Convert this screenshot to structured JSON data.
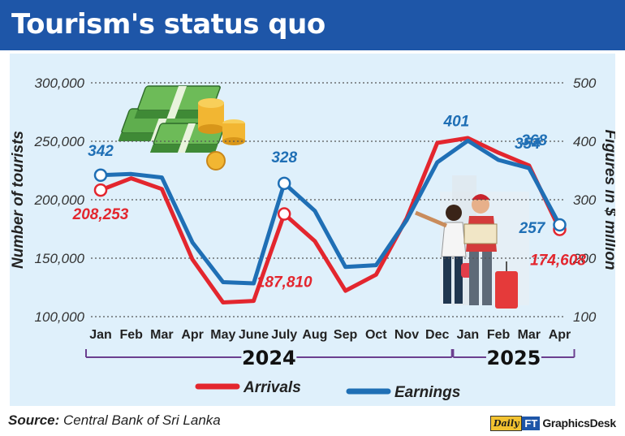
{
  "header": {
    "title": "Tourism's status quo"
  },
  "chart_data": {
    "type": "line",
    "categories": [
      "Jan",
      "Feb",
      "Mar",
      "Apr",
      "May",
      "June",
      "July",
      "Aug",
      "Sep",
      "Oct",
      "Nov",
      "Dec",
      "Jan",
      "Feb",
      "Mar",
      "Apr"
    ],
    "year_groups": [
      {
        "label": "2024",
        "start": 0,
        "end": 11
      },
      {
        "label": "2025",
        "start": 12,
        "end": 15
      }
    ],
    "y_left": {
      "label": "Number of tourists",
      "ticks": [
        "100,000",
        "150,000",
        "200,000",
        "250,000",
        "300,000"
      ],
      "range": [
        100000,
        300000
      ]
    },
    "y_right": {
      "label": "Figures in $ million",
      "ticks": [
        "100",
        "200",
        "300",
        "400",
        "500"
      ],
      "range": [
        100,
        500
      ]
    },
    "series": [
      {
        "name": "Arrivals",
        "axis": "left",
        "color": "#e3262e",
        "values": [
          208253,
          218350,
          209181,
          148867,
          112128,
          113470,
          187810,
          164609,
          122140,
          135907,
          184158,
          248592,
          252761,
          240217,
          229298,
          174608
        ]
      },
      {
        "name": "Earnings",
        "axis": "right",
        "color": "#1f6fb5",
        "values": [
          342,
          344,
          338,
          227,
          159,
          157,
          328,
          281,
          185,
          188,
          265,
          364,
          401,
          368,
          354,
          257
        ]
      }
    ],
    "annotations": [
      {
        "series": 0,
        "index": 0,
        "text": "208,253"
      },
      {
        "series": 0,
        "index": 6,
        "text": "187,810"
      },
      {
        "series": 0,
        "index": 15,
        "text": "174,608"
      },
      {
        "series": 1,
        "index": 0,
        "text": "342"
      },
      {
        "series": 1,
        "index": 6,
        "text": "328"
      },
      {
        "series": 1,
        "index": 12,
        "text": "401"
      },
      {
        "series": 1,
        "index": 13,
        "text": "368"
      },
      {
        "series": 1,
        "index": 14,
        "text": "354"
      },
      {
        "series": 1,
        "index": 15,
        "text": "257"
      }
    ],
    "legend": {
      "placement": "bottom",
      "items": [
        "Arrivals",
        "Earnings"
      ]
    },
    "grid": "dotted-horizontal"
  },
  "footer": {
    "source_label": "Source:",
    "source_text": "Central Bank of Sri Lanka",
    "brand_logo": "Daily",
    "brand_ft": "FT",
    "brand_text": "GraphicsDesk"
  },
  "colors": {
    "header_bg": "#1e56a8",
    "panel_bg": "#dff0fb",
    "arrivals": "#e3262e",
    "earnings": "#1f6fb5",
    "bracket": "#6b3f8f"
  }
}
